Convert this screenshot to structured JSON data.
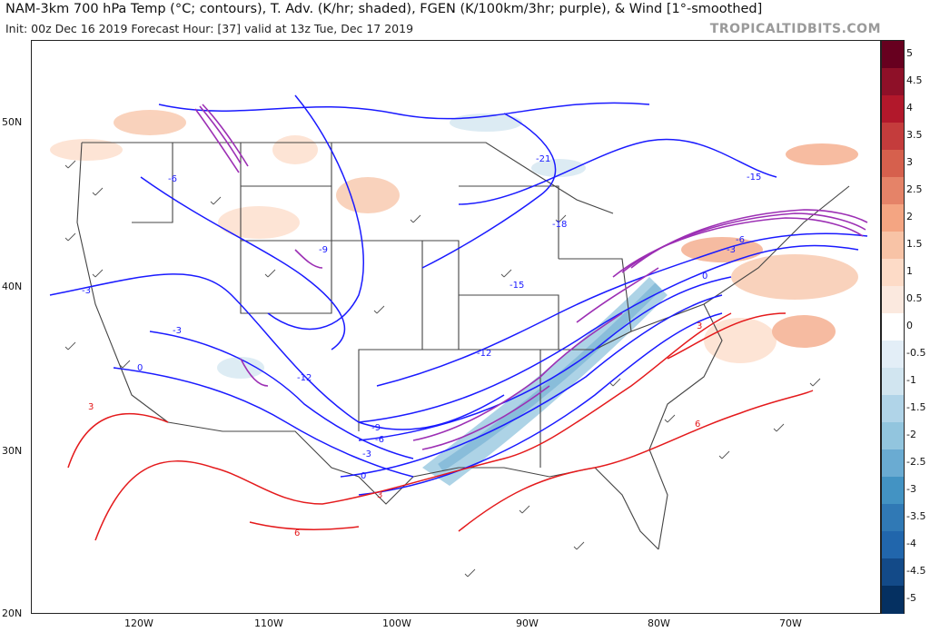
{
  "header": {
    "title": "NAM-3km 700 hPa Temp (°C; contours), T. Adv. (K/hr; shaded), FGEN (K/100km/3hr; purple), & Wind [1°-smoothed]",
    "subtitle": "Init: 00z Dec 16 2019   Forecast Hour: [37]   valid at 13z Tue, Dec 17 2019",
    "brand": "TROPICALTIDBITS.COM"
  },
  "axes": {
    "lat_labels": [
      "50N",
      "40N",
      "30N",
      "20N"
    ],
    "lon_labels": [
      "120W",
      "110W",
      "100W",
      "90W",
      "80W",
      "70W"
    ]
  },
  "colorbar": {
    "labels": [
      "5",
      "4.5",
      "4",
      "3.5",
      "3",
      "2.5",
      "2",
      "1.5",
      "1",
      "0.5",
      "0",
      "-0.5",
      "-1",
      "-1.5",
      "-2",
      "-2.5",
      "-3",
      "-3.5",
      "-4",
      "-4.5",
      "-5"
    ],
    "colors": [
      "#67001f",
      "#8e1028",
      "#b2182b",
      "#c43c3c",
      "#d6604d",
      "#e58368",
      "#f4a582",
      "#f8c3a6",
      "#fddbc7",
      "#fbe9df",
      "#ffffff",
      "#e3eef7",
      "#d1e5f0",
      "#b0d4e8",
      "#92c5de",
      "#6aabd2",
      "#4393c3",
      "#3079b5",
      "#2166ac",
      "#134a88",
      "#053061"
    ]
  },
  "map": {
    "temp_labels_blue": [
      "-21",
      "-18",
      "-15",
      "-15",
      "-12",
      "-12",
      "-9",
      "-9",
      "-6",
      "-6",
      "-6",
      "-3",
      "-3",
      "-3",
      "-3",
      "0",
      "0",
      "0"
    ],
    "temp_labels_red": [
      "3",
      "3",
      "3",
      "6",
      "6"
    ],
    "colors": {
      "cold": "#1a1aff",
      "warm": "#e41a1c",
      "fgen": "#9c2fb4",
      "border": "#444444"
    }
  }
}
